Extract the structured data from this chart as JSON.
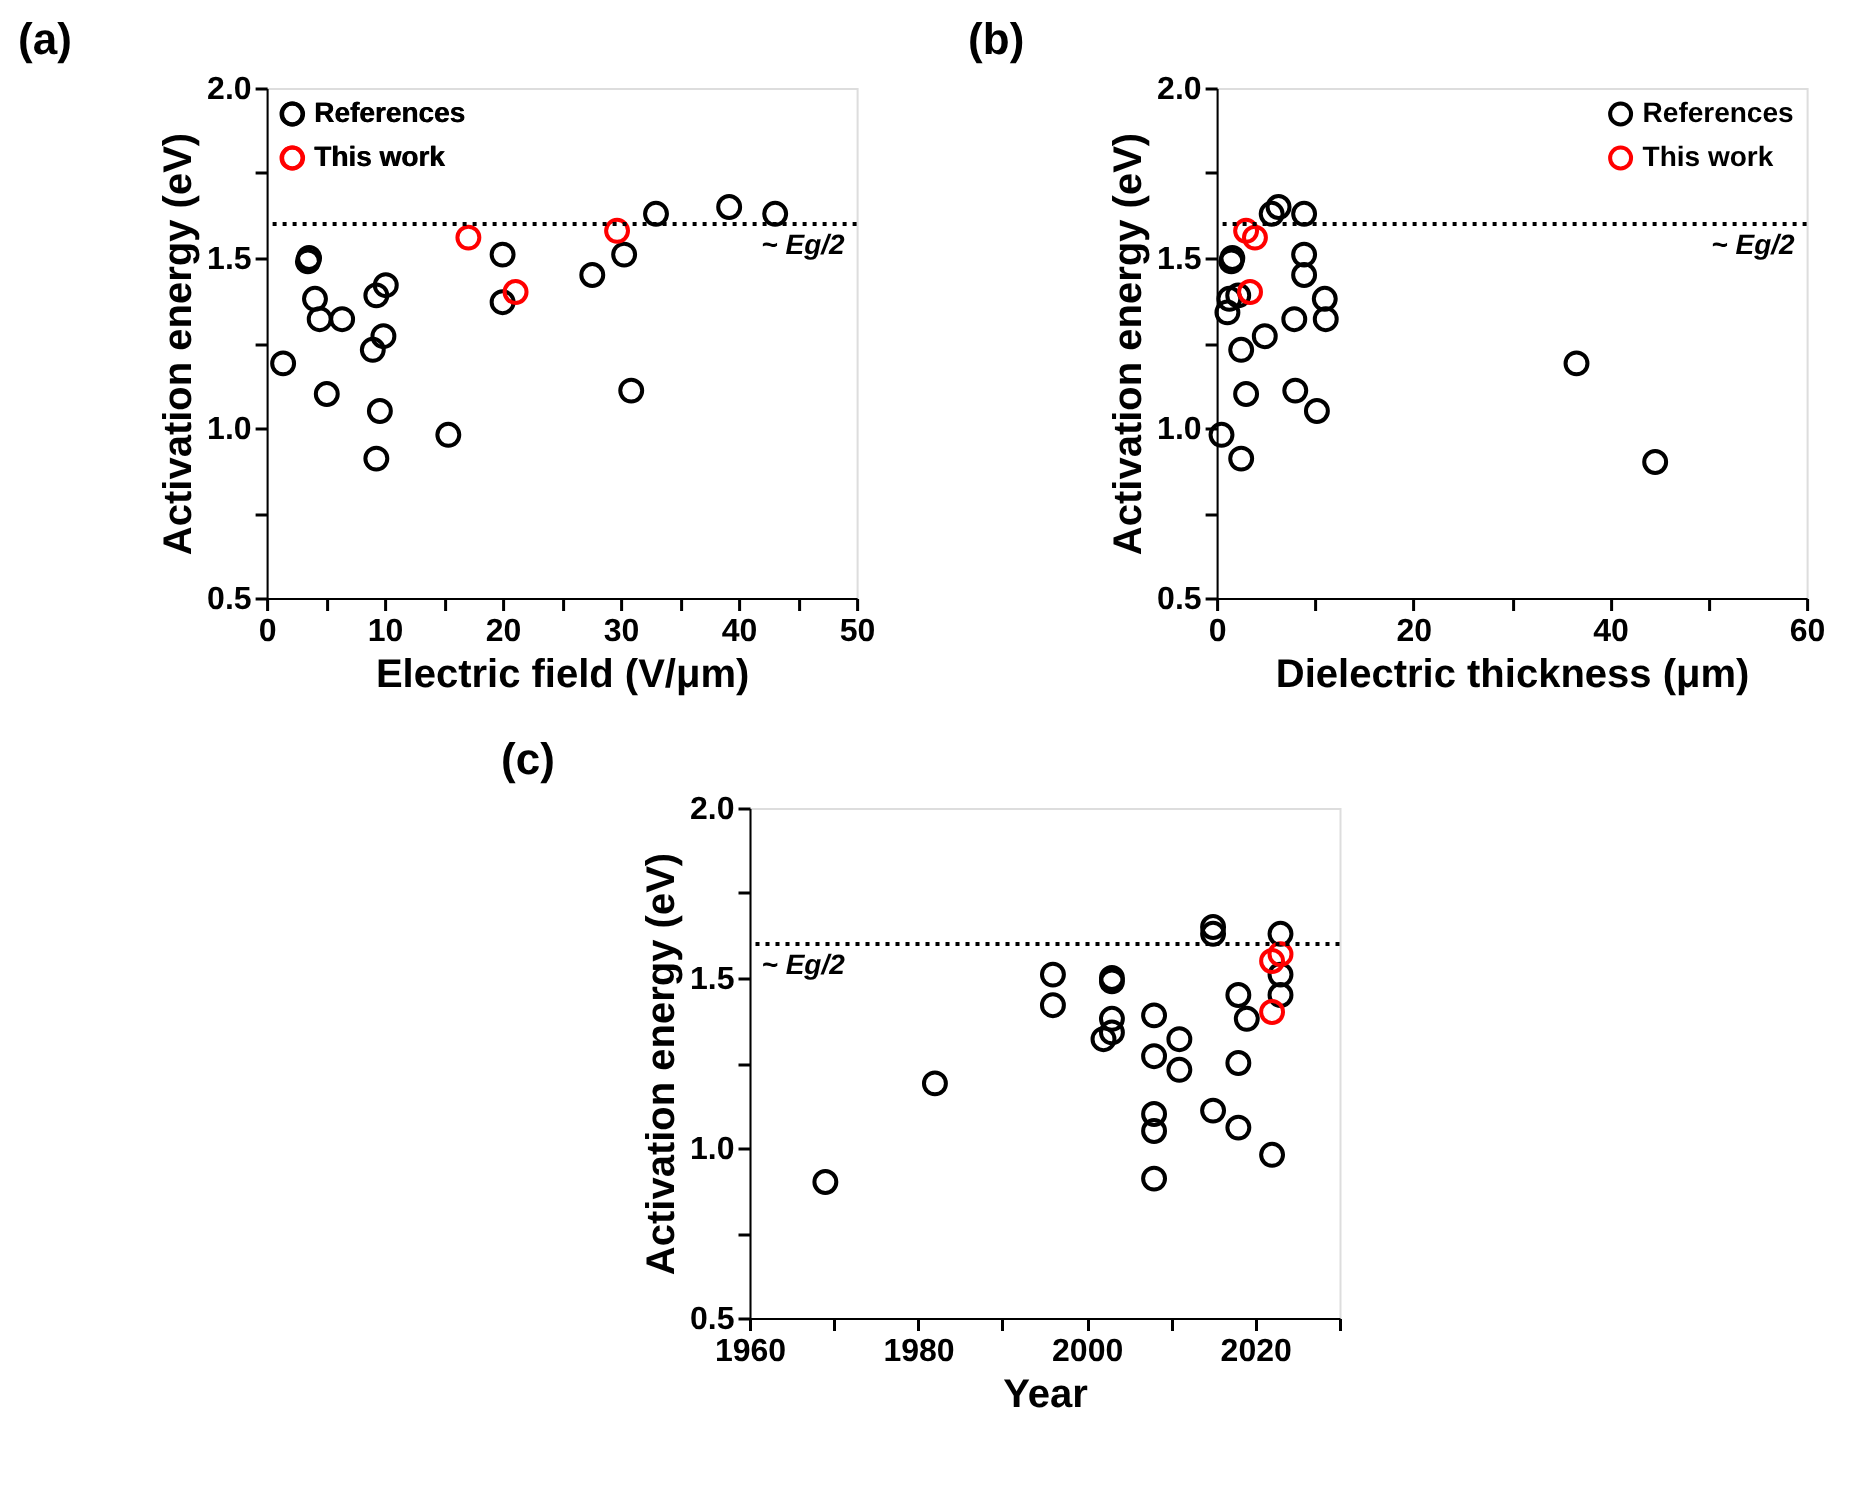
{
  "chart_data": [
    {
      "type": "scatter",
      "title": "(a)",
      "xlabel": "Electric field (V/μm)",
      "ylabel": "Activation energy (eV)",
      "xlim": [
        0,
        50
      ],
      "xticks": [
        0,
        {
          "value": 5,
          "label": null
        },
        10,
        {
          "value": 15,
          "label": null
        },
        20,
        {
          "value": 25,
          "label": null
        },
        30,
        {
          "value": 35,
          "label": null
        },
        40,
        {
          "value": 45,
          "label": null
        },
        50
      ],
      "ylim": [
        0.5,
        2.0
      ],
      "yticks": [
        {
          "value": 0.5,
          "label": "0.5"
        },
        {
          "value": 0.75,
          "label": null
        },
        {
          "value": 1.0,
          "label": "1.0"
        },
        {
          "value": 1.25,
          "label": null
        },
        {
          "value": 1.5,
          "label": "1.5"
        },
        {
          "value": 1.75,
          "label": null
        },
        {
          "value": 2.0,
          "label": "2.0"
        }
      ],
      "grid": false,
      "legend": "top left",
      "marker": "circle",
      "series": [
        {
          "name": "References",
          "color": "#000000",
          "x": [
            1.4,
            3.5,
            3.6,
            4.1,
            4.5,
            5.1,
            6.4,
            9.0,
            9.3,
            10.1,
            9.9,
            9.6,
            9.3,
            15.4,
            20.0,
            20.0,
            27.6,
            30.3,
            30.9,
            33.0,
            39.2,
            43.1
          ],
          "values": [
            1.19,
            1.49,
            1.5,
            1.38,
            1.32,
            1.1,
            1.32,
            1.23,
            1.39,
            1.42,
            1.27,
            1.05,
            0.91,
            0.98,
            1.51,
            1.37,
            1.45,
            1.51,
            1.11,
            1.63,
            1.65,
            1.63
          ]
        },
        {
          "name": "This work",
          "color": "#ff0000",
          "x": [
            17.1,
            21.1,
            29.7
          ],
          "values": [
            1.56,
            1.4,
            1.58
          ]
        }
      ],
      "ref_lines": [
        {
          "axis": "y",
          "value": 1.6,
          "label": "~ Eg/2",
          "line_style": "dotted",
          "color": "#000000"
        }
      ]
    },
    {
      "type": "scatter",
      "title": "(b)",
      "xlabel": "Dielectric thickness (μm)",
      "ylabel": "Activation energy (eV)",
      "xlim": [
        0,
        60
      ],
      "xticks": [
        0,
        {
          "value": 10,
          "label": null
        },
        20,
        {
          "value": 30,
          "label": null
        },
        40,
        {
          "value": 50,
          "label": null
        },
        60
      ],
      "ylim": [
        0.5,
        2.0
      ],
      "yticks": [
        {
          "value": 0.5,
          "label": "0.5"
        },
        {
          "value": 0.75,
          "label": null
        },
        {
          "value": 1.0,
          "label": "1.0"
        },
        {
          "value": 1.25,
          "label": null
        },
        {
          "value": 1.5,
          "label": "1.5"
        },
        {
          "value": 1.75,
          "label": null
        },
        {
          "value": 2.0,
          "label": "2.0"
        }
      ],
      "grid": false,
      "legend": "top right",
      "marker": "circle",
      "series": [
        {
          "name": "References",
          "color": "#000000",
          "x": [
            0.5,
            1.1,
            1.3,
            1.5,
            1.6,
            2.2,
            2.5,
            2.5,
            3.0,
            4.9,
            5.6,
            6.3,
            7.9,
            8.0,
            8.9,
            8.9,
            8.9,
            10.2,
            11.0,
            11.1,
            36.6,
            44.6
          ],
          "values": [
            0.98,
            1.34,
            1.38,
            1.49,
            1.5,
            1.39,
            1.23,
            0.91,
            1.1,
            1.27,
            1.63,
            1.65,
            1.32,
            1.11,
            1.63,
            1.51,
            1.45,
            1.05,
            1.38,
            1.32,
            1.19,
            0.9
          ]
        },
        {
          "name": "This work",
          "color": "#ff0000",
          "x": [
            3.0,
            3.9,
            3.4
          ],
          "values": [
            1.58,
            1.56,
            1.4
          ]
        }
      ],
      "ref_lines": [
        {
          "axis": "y",
          "value": 1.6,
          "label": "~ Eg/2",
          "line_style": "dotted",
          "color": "#000000"
        }
      ]
    },
    {
      "type": "scatter",
      "title": "(c)",
      "xlabel": "Year",
      "ylabel": "Activation energy (eV)",
      "xlim": [
        1960,
        2030
      ],
      "xticks": [
        1960,
        {
          "value": 1970,
          "label": null
        },
        1980,
        {
          "value": 1990,
          "label": null
        },
        2000,
        {
          "value": 2010,
          "label": null
        },
        2020,
        {
          "value": 2030,
          "label": null
        }
      ],
      "ylim": [
        0.5,
        2.0
      ],
      "yticks": [
        {
          "value": 0.5,
          "label": "0.5"
        },
        {
          "value": 0.75,
          "label": null
        },
        {
          "value": 1.0,
          "label": "1.0"
        },
        {
          "value": 1.25,
          "label": null
        },
        {
          "value": 1.5,
          "label": "1.5"
        },
        {
          "value": 1.75,
          "label": null
        },
        {
          "value": 2.0,
          "label": "2.0"
        }
      ],
      "grid": false,
      "legend": "top left",
      "marker": "circle",
      "series": [
        {
          "name": "References",
          "color": "#000000",
          "x": [
            1969,
            1982,
            1996,
            1996,
            2002,
            2003,
            2003,
            2003,
            2003,
            2008,
            2008,
            2008,
            2008,
            2008,
            2011,
            2011,
            2015,
            2015,
            2015,
            2018,
            2018,
            2018,
            2019,
            2022,
            2023,
            2023,
            2023
          ],
          "values": [
            0.9,
            1.19,
            1.51,
            1.42,
            1.32,
            1.34,
            1.38,
            1.5,
            1.49,
            1.39,
            1.27,
            1.1,
            1.05,
            0.91,
            1.32,
            1.23,
            1.65,
            1.63,
            1.11,
            1.45,
            1.25,
            1.06,
            1.38,
            0.98,
            1.63,
            1.51,
            1.45
          ]
        },
        {
          "name": "This work",
          "color": "#ff0000",
          "x": [
            2022,
            2023,
            2022
          ],
          "values": [
            1.55,
            1.57,
            1.4
          ]
        }
      ],
      "ref_lines": [
        {
          "axis": "y",
          "value": 1.6,
          "label": "~ Eg/2",
          "line_style": "dotted",
          "color": "#000000"
        }
      ]
    }
  ]
}
